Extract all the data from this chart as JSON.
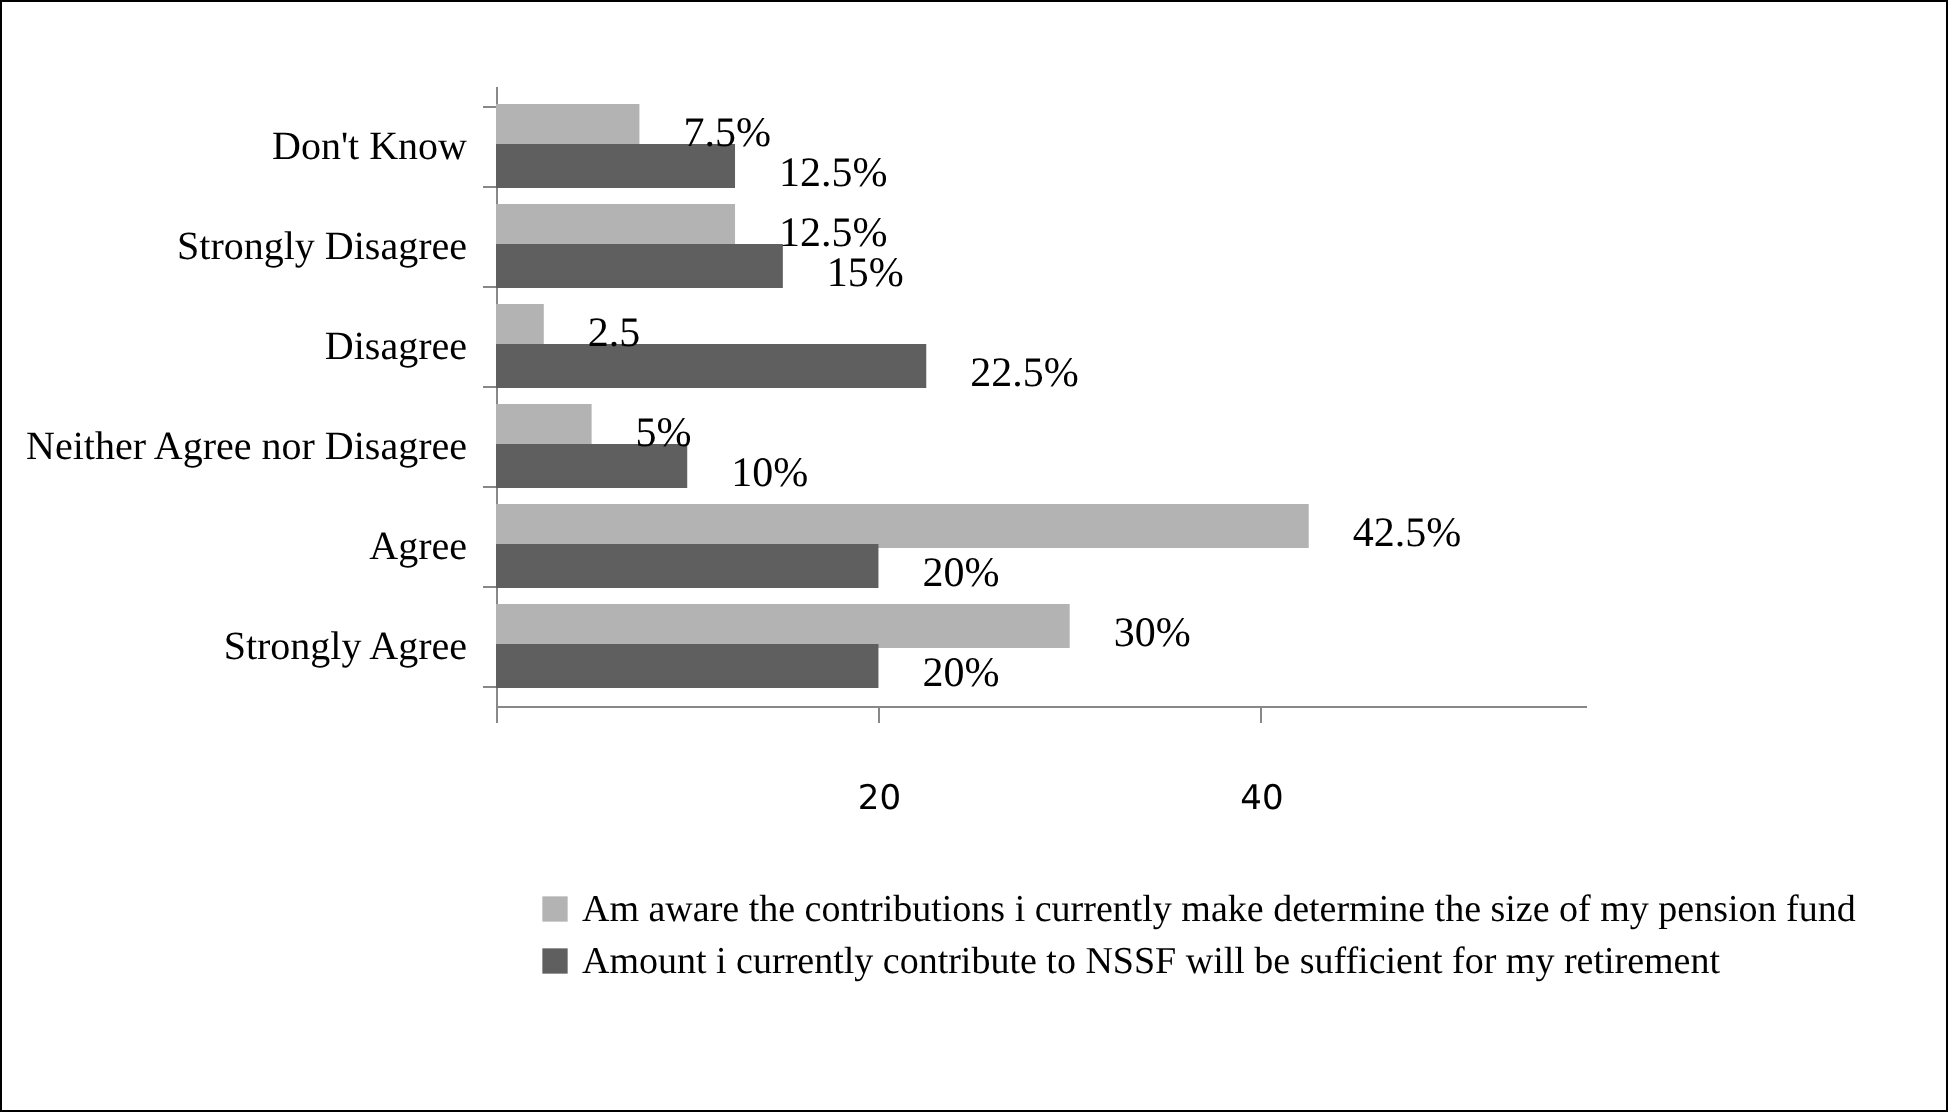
{
  "chart_data": {
    "type": "bar",
    "orientation": "horizontal",
    "categories": [
      "Don't Know",
      "Strongly Disagree",
      "Disagree",
      "Neither Agree nor Disagree",
      "Agree",
      "Strongly Agree"
    ],
    "series": [
      {
        "name": "Am aware the contributions i currently make determine the size of my pension fund",
        "color": "#b3b3b3",
        "values": [
          7.5,
          12.5,
          2.5,
          5,
          42.5,
          30
        ],
        "value_labels": [
          "7.5%",
          "12.5%",
          "2.5",
          "5%",
          "42.5%",
          "30%"
        ]
      },
      {
        "name": "Amount i currently contribute to NSSF will be sufficient for my retirement",
        "color": "#5f5f5f",
        "values": [
          12.5,
          15,
          22.5,
          10,
          20,
          20
        ],
        "value_labels": [
          "12.5%",
          "15%",
          "22.5%",
          "10%",
          "20%",
          "20%"
        ]
      }
    ],
    "xlim": [
      0,
      57
    ],
    "xticks": [
      {
        "value": 0,
        "label": null
      },
      20,
      40
    ],
    "grid": false,
    "legend": "bottom"
  }
}
